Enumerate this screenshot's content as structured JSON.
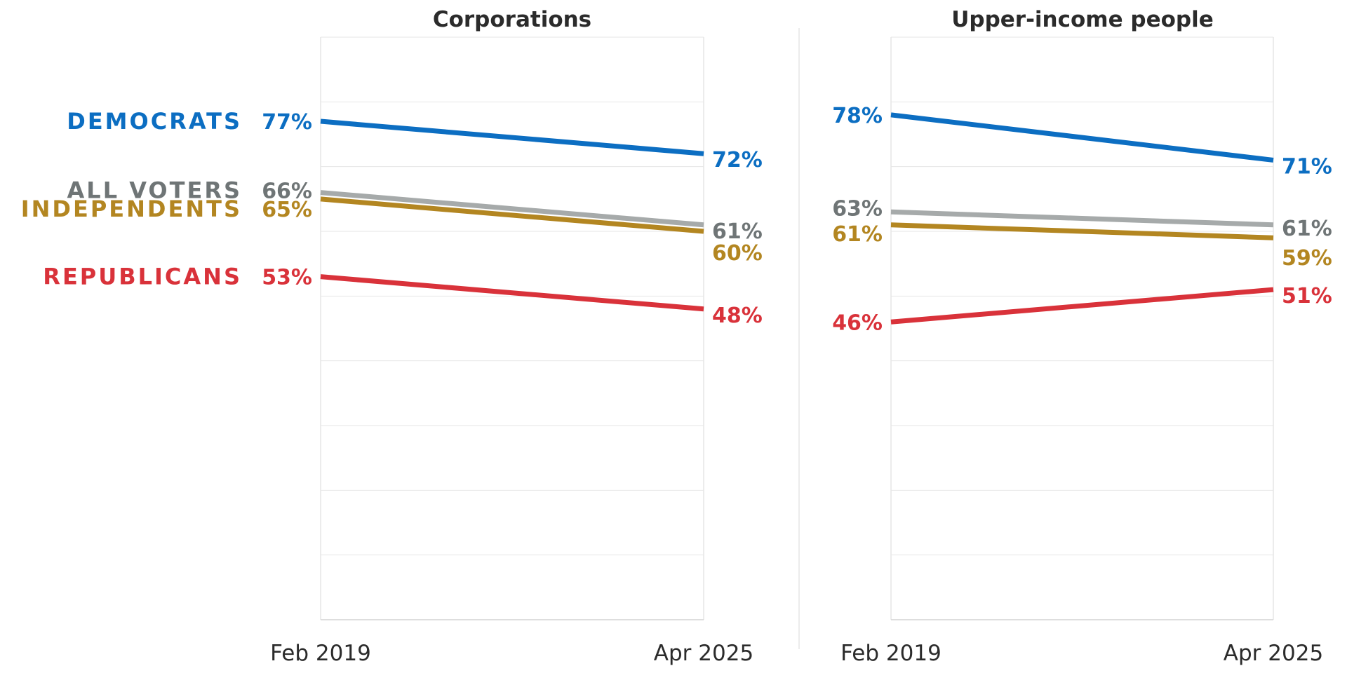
{
  "colors": {
    "democrats": "#0c6ec2",
    "all_voters": "#a6aaaa",
    "all_voters_text": "#6f7576",
    "independents": "#b38621",
    "republicans": "#d9323a",
    "grid": "#e6e6e6",
    "axis_text": "#2b2b2b",
    "title_text": "#2b2b2b"
  },
  "legend": {
    "democrats": "DEMOCRATS",
    "all_voters": "ALL VOTERS",
    "independents": "INDEPENDENTS",
    "republicans": "REPUBLICANS"
  },
  "chart_data": [
    {
      "type": "line",
      "title": "Corporations",
      "x": [
        "Feb 2019",
        "Apr 2025"
      ],
      "ylim": [
        0,
        90
      ],
      "grid": true,
      "series": [
        {
          "key": "democrats",
          "name": "DEMOCRATS",
          "values": [
            77,
            72
          ],
          "labels": [
            "77%",
            "72%"
          ]
        },
        {
          "key": "all_voters",
          "name": "ALL VOTERS",
          "values": [
            66,
            61
          ],
          "labels": [
            "66%",
            "61%"
          ]
        },
        {
          "key": "independents",
          "name": "INDEPENDENTS",
          "values": [
            65,
            60
          ],
          "labels": [
            "65%",
            "60%"
          ]
        },
        {
          "key": "republicans",
          "name": "REPUBLICANS",
          "values": [
            53,
            48
          ],
          "labels": [
            "53%",
            "48%"
          ]
        }
      ]
    },
    {
      "type": "line",
      "title": "Upper-income people",
      "x": [
        "Feb 2019",
        "Apr 2025"
      ],
      "ylim": [
        0,
        90
      ],
      "grid": true,
      "series": [
        {
          "key": "democrats",
          "name": "DEMOCRATS",
          "values": [
            78,
            71
          ],
          "labels": [
            "78%",
            "71%"
          ]
        },
        {
          "key": "all_voters",
          "name": "ALL VOTERS",
          "values": [
            63,
            61
          ],
          "labels": [
            "63%",
            "61%"
          ]
        },
        {
          "key": "independents",
          "name": "INDEPENDENTS",
          "values": [
            61,
            59
          ],
          "labels": [
            "61%",
            "59%"
          ]
        },
        {
          "key": "republicans",
          "name": "REPUBLICANS",
          "values": [
            46,
            51
          ],
          "labels": [
            "46%",
            "51%"
          ]
        }
      ]
    }
  ]
}
